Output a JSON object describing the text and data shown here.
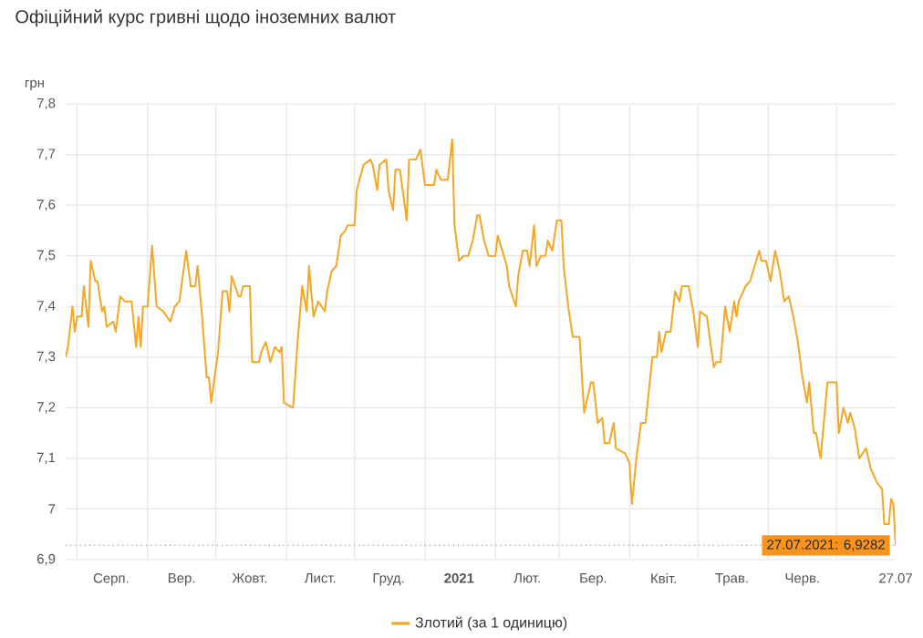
{
  "chart_data": {
    "type": "line",
    "title": "Офіційний курс гривні щодо іноземних валют",
    "ylabel": "грн",
    "x": [
      "2020-07-27",
      "2020-07-28",
      "2020-07-30",
      "2020-07-31",
      "2020-08-01",
      "2020-08-03",
      "2020-08-04",
      "2020-08-06",
      "2020-08-07",
      "2020-08-09",
      "2020-08-10",
      "2020-08-12",
      "2020-08-13",
      "2020-08-14",
      "2020-08-17",
      "2020-08-18",
      "2020-08-20",
      "2020-08-22",
      "2020-08-25",
      "2020-08-27",
      "2020-08-28",
      "2020-08-29",
      "2020-08-30",
      "2020-09-01",
      "2020-09-03",
      "2020-09-05",
      "2020-09-08",
      "2020-09-11",
      "2020-09-13",
      "2020-09-15",
      "2020-09-18",
      "2020-09-20",
      "2020-09-22",
      "2020-09-23",
      "2020-09-25",
      "2020-09-27",
      "2020-09-28",
      "2020-09-29",
      "2020-10-02",
      "2020-10-04",
      "2020-10-06",
      "2020-10-07",
      "2020-10-08",
      "2020-10-11",
      "2020-10-12",
      "2020-10-13",
      "2020-10-16",
      "2020-10-17",
      "2020-10-20",
      "2020-10-21",
      "2020-10-23",
      "2020-10-25",
      "2020-10-27",
      "2020-10-29",
      "2020-10-30",
      "2020-10-31",
      "2020-11-04",
      "2020-11-06",
      "2020-11-08",
      "2020-11-10",
      "2020-11-11",
      "2020-11-13",
      "2020-11-15",
      "2020-11-18",
      "2020-11-19",
      "2020-11-21",
      "2020-11-23",
      "2020-11-25",
      "2020-11-27",
      "2020-11-28",
      "2020-12-01",
      "2020-12-02",
      "2020-12-05",
      "2020-12-08",
      "2020-12-09",
      "2020-12-11",
      "2020-12-12",
      "2020-12-15",
      "2020-12-16",
      "2020-12-18",
      "2020-12-19",
      "2020-12-21",
      "2020-12-24",
      "2020-12-25",
      "2020-12-28",
      "2020-12-30",
      "2021-01-01",
      "2021-01-05",
      "2021-01-06",
      "2021-01-08",
      "2021-01-11",
      "2021-01-13",
      "2021-01-14",
      "2021-01-16",
      "2021-01-18",
      "2021-01-20",
      "2021-01-22",
      "2021-01-24",
      "2021-01-25",
      "2021-01-27",
      "2021-01-29",
      "2021-02-01",
      "2021-02-02",
      "2021-02-04",
      "2021-02-06",
      "2021-02-07",
      "2021-02-10",
      "2021-02-11",
      "2021-02-13",
      "2021-02-15",
      "2021-02-16",
      "2021-02-18",
      "2021-02-19",
      "2021-02-21",
      "2021-02-23",
      "2021-02-24",
      "2021-02-26",
      "2021-02-28",
      "2021-03-02",
      "2021-03-03",
      "2021-03-05",
      "2021-03-07",
      "2021-03-10",
      "2021-03-12",
      "2021-03-13",
      "2021-03-15",
      "2021-03-16",
      "2021-03-18",
      "2021-03-20",
      "2021-03-21",
      "2021-03-23",
      "2021-03-25",
      "2021-03-26",
      "2021-03-30",
      "2021-04-01",
      "2021-04-02",
      "2021-04-04",
      "2021-04-06",
      "2021-04-08",
      "2021-04-11",
      "2021-04-13",
      "2021-04-14",
      "2021-04-15",
      "2021-04-17",
      "2021-04-19",
      "2021-04-21",
      "2021-04-23",
      "2021-04-24",
      "2021-04-27",
      "2021-04-29",
      "2021-05-01",
      "2021-05-02",
      "2021-05-05",
      "2021-05-08",
      "2021-05-09",
      "2021-05-11",
      "2021-05-13",
      "2021-05-15",
      "2021-05-17",
      "2021-05-18",
      "2021-05-19",
      "2021-05-22",
      "2021-05-24",
      "2021-05-26",
      "2021-05-28",
      "2021-05-29",
      "2021-05-31",
      "2021-06-02",
      "2021-06-04",
      "2021-06-06",
      "2021-06-08",
      "2021-06-10",
      "2021-06-12",
      "2021-06-14",
      "2021-06-16",
      "2021-06-18",
      "2021-06-19",
      "2021-06-21",
      "2021-06-22",
      "2021-06-24",
      "2021-06-27",
      "2021-06-29",
      "2021-07-01",
      "2021-07-02",
      "2021-07-04",
      "2021-07-06",
      "2021-07-07",
      "2021-07-09",
      "2021-07-11",
      "2021-07-14",
      "2021-07-16",
      "2021-07-19",
      "2021-07-21",
      "2021-07-22",
      "2021-07-24",
      "2021-07-25",
      "2021-07-26",
      "2021-07-27"
    ],
    "series": [
      {
        "name": "Злотий (за 1 одиницю)",
        "color": "#f5a623",
        "values": [
          7.3,
          7.32,
          7.4,
          7.35,
          7.38,
          7.38,
          7.44,
          7.36,
          7.49,
          7.45,
          7.45,
          7.39,
          7.4,
          7.36,
          7.37,
          7.35,
          7.42,
          7.41,
          7.41,
          7.32,
          7.38,
          7.32,
          7.4,
          7.4,
          7.52,
          7.4,
          7.39,
          7.37,
          7.4,
          7.41,
          7.51,
          7.44,
          7.44,
          7.48,
          7.38,
          7.26,
          7.26,
          7.21,
          7.31,
          7.43,
          7.43,
          7.39,
          7.46,
          7.42,
          7.42,
          7.44,
          7.44,
          7.29,
          7.29,
          7.31,
          7.33,
          7.29,
          7.32,
          7.31,
          7.32,
          7.21,
          7.2,
          7.33,
          7.44,
          7.39,
          7.48,
          7.38,
          7.41,
          7.39,
          7.43,
          7.47,
          7.48,
          7.54,
          7.55,
          7.56,
          7.56,
          7.63,
          7.68,
          7.69,
          7.68,
          7.63,
          7.68,
          7.69,
          7.63,
          7.59,
          7.67,
          7.67,
          7.57,
          7.69,
          7.69,
          7.71,
          7.64,
          7.64,
          7.67,
          7.65,
          7.65,
          7.73,
          7.56,
          7.49,
          7.5,
          7.5,
          7.53,
          7.58,
          7.58,
          7.53,
          7.5,
          7.5,
          7.54,
          7.51,
          7.48,
          7.44,
          7.4,
          7.46,
          7.51,
          7.51,
          7.48,
          7.56,
          7.48,
          7.5,
          7.5,
          7.53,
          7.51,
          7.57,
          7.57,
          7.48,
          7.4,
          7.34,
          7.34,
          7.19,
          7.21,
          7.25,
          7.25,
          7.17,
          7.18,
          7.13,
          7.13,
          7.17,
          7.12,
          7.11,
          7.09,
          7.01,
          7.1,
          7.17,
          7.17,
          7.3,
          7.3,
          7.35,
          7.31,
          7.35,
          7.35,
          7.43,
          7.41,
          7.44,
          7.44,
          7.39,
          7.32,
          7.39,
          7.38,
          7.28,
          7.29,
          7.29,
          7.4,
          7.35,
          7.41,
          7.38,
          7.41,
          7.44,
          7.45,
          7.48,
          7.51,
          7.49,
          7.49,
          7.45,
          7.51,
          7.47,
          7.41,
          7.42,
          7.38,
          7.33,
          7.26,
          7.21,
          7.25,
          7.15,
          7.15,
          7.1,
          7.25,
          7.25,
          7.25,
          7.15,
          7.2,
          7.17,
          7.19,
          7.16,
          7.1,
          7.12,
          7.08,
          7.05,
          7.04,
          6.97,
          6.97,
          7.02,
          7.01,
          6.9282
        ]
      }
    ],
    "xlim": [
      "2020-07-27",
      "2021-07-27"
    ],
    "xticks": [
      {
        "value": "2020-08-01",
        "label": null
      },
      {
        "value": "2020-08-16",
        "label": "Серп."
      },
      {
        "value": "2020-09-01",
        "label": null
      },
      {
        "value": "2020-09-16",
        "label": "Вер."
      },
      {
        "value": "2020-10-01",
        "label": null
      },
      {
        "value": "2020-10-16",
        "label": "Жовт."
      },
      {
        "value": "2020-11-01",
        "label": null
      },
      {
        "value": "2020-11-16",
        "label": "Лист."
      },
      {
        "value": "2020-12-01",
        "label": null
      },
      {
        "value": "2020-12-16",
        "label": "Груд."
      },
      {
        "value": "2021-01-01",
        "label": null
      },
      {
        "value": "2021-01-16",
        "label": "**2021**"
      },
      {
        "value": "2021-02-01",
        "label": null
      },
      {
        "value": "2021-02-15",
        "label": "Лют."
      },
      {
        "value": "2021-03-01",
        "label": null
      },
      {
        "value": "2021-03-16",
        "label": "Бер."
      },
      {
        "value": "2021-04-01",
        "label": null
      },
      {
        "value": "2021-04-16",
        "label": "Квіт."
      },
      {
        "value": "2021-05-01",
        "label": null
      },
      {
        "value": "2021-05-16",
        "label": "Трав."
      },
      {
        "value": "2021-06-01",
        "label": null
      },
      {
        "value": "2021-06-16",
        "label": "Черв."
      },
      {
        "value": "2021-07-01",
        "label": null
      },
      {
        "value": "2021-07-27",
        "label": "27.07"
      }
    ],
    "ylim": [
      6.9,
      7.8
    ],
    "yticks": [
      {
        "value": 6.9,
        "label": "6,9"
      },
      7,
      {
        "value": 7.1,
        "label": "7,1"
      },
      {
        "value": 7.2,
        "label": "7,2"
      },
      {
        "value": 7.3,
        "label": "7,3"
      },
      {
        "value": 7.4,
        "label": "7,4"
      },
      {
        "value": 7.5,
        "label": "7,5"
      },
      {
        "value": 7.6,
        "label": "7,6"
      },
      {
        "value": 7.7,
        "label": "7,7"
      },
      {
        "value": 7.8,
        "label": "7,8"
      }
    ],
    "ref_lines": [
      {
        "axis": "y",
        "value": 6.9282,
        "line_style": "dotted",
        "color": "#9e9e9e"
      }
    ],
    "annotations": [
      {
        "text": "27.07.2021: 6,9282",
        "x": "2021-07-27",
        "y": 6.9282
      }
    ],
    "grid": true,
    "legend": "bottom",
    "marker": "none",
    "line_style": "solid"
  }
}
